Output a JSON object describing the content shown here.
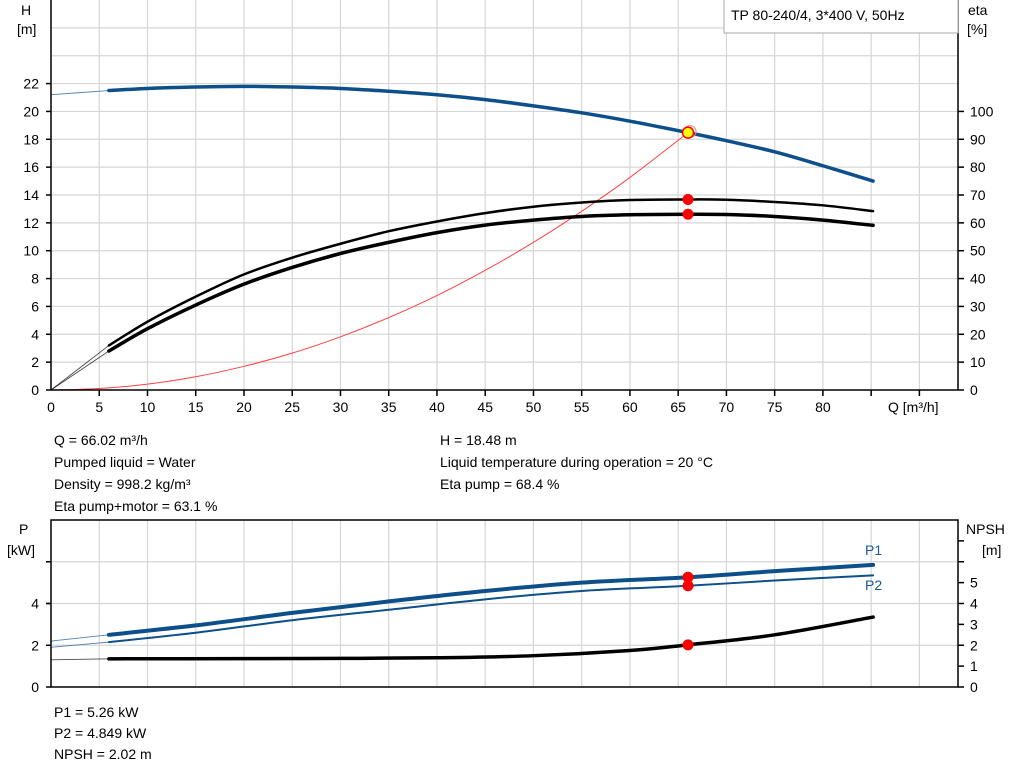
{
  "title_box": "TP 80-240/4, 3*400 V, 50Hz",
  "colors": {
    "head": "#0c4f8a",
    "power_label": "#1a5a96",
    "efficiency": "#000000",
    "system_curve": "#ff4040",
    "marker": "#ff0000",
    "duty_point": "#ffff00"
  },
  "chart_data": [
    {
      "type": "line",
      "name": "QH",
      "xlabel": "Q [m³/h]",
      "ylabel_left": [
        "H",
        "[m]"
      ],
      "ylabel_right": [
        "eta",
        "[%]"
      ],
      "xlim": [
        0,
        94
      ],
      "ylim_left": [
        0,
        28
      ],
      "ylim_right": [
        0,
        140
      ],
      "x_ticks": [
        0,
        5,
        10,
        15,
        20,
        25,
        30,
        35,
        40,
        45,
        50,
        55,
        60,
        65,
        70,
        75,
        80
      ],
      "y_ticks_left": [
        0,
        2,
        4,
        6,
        8,
        10,
        12,
        14,
        16,
        18,
        20,
        22
      ],
      "y_ticks_right": [
        0,
        10,
        20,
        30,
        40,
        50,
        60,
        70,
        80,
        90,
        100
      ],
      "grid": true,
      "series": [
        {
          "key": "H",
          "axis": "left",
          "extrapolated": {
            "x": [
              0,
              6
            ],
            "y": [
              21.2,
              21.5
            ]
          },
          "x": [
            6,
            10,
            15,
            20,
            25,
            30,
            35,
            40,
            45,
            50,
            55,
            60,
            66.02,
            70,
            75,
            80,
            85.2
          ],
          "y": [
            21.5,
            21.65,
            21.75,
            21.8,
            21.75,
            21.65,
            21.45,
            21.2,
            20.85,
            20.4,
            19.9,
            19.3,
            18.48,
            17.9,
            17.1,
            16.1,
            15.0
          ]
        },
        {
          "key": "eta_pump",
          "axis": "right",
          "extrapolated": {
            "x": [
              0,
              6
            ],
            "y": [
              0,
              16
            ]
          },
          "x": [
            6,
            10,
            15,
            20,
            25,
            30,
            35,
            40,
            45,
            50,
            55,
            60,
            66.02,
            70,
            75,
            80,
            85.2
          ],
          "y": [
            16,
            24.5,
            33.5,
            41.5,
            47.5,
            52.5,
            57,
            60.5,
            63.5,
            65.8,
            67.3,
            68.2,
            68.4,
            68.3,
            67.5,
            66.3,
            64.2
          ]
        },
        {
          "key": "eta_pump_motor",
          "axis": "right",
          "extrapolated": {
            "x": [
              0,
              6
            ],
            "y": [
              0,
              14
            ]
          },
          "x": [
            6,
            10,
            15,
            20,
            25,
            30,
            35,
            40,
            45,
            50,
            55,
            60,
            66.02,
            70,
            75,
            80,
            85.2
          ],
          "y": [
            14,
            22,
            30.5,
            38,
            44,
            49,
            53,
            56.5,
            59.2,
            61,
            62.3,
            62.9,
            63.1,
            63,
            62.3,
            61,
            59.1
          ]
        },
        {
          "key": "system_curve",
          "axis": "left",
          "x": [
            0,
            5,
            10,
            15,
            20,
            25,
            30,
            35,
            40,
            45,
            50,
            55,
            60,
            66.02
          ],
          "y": [
            0,
            0.11,
            0.42,
            0.95,
            1.7,
            2.65,
            3.82,
            5.2,
            6.78,
            8.59,
            10.6,
            12.83,
            15.26,
            18.48
          ]
        }
      ],
      "duty_point": {
        "Q": 66.02,
        "H": 18.48,
        "eta_pump": 68.4,
        "eta_pump_motor": 63.1
      }
    },
    {
      "type": "line",
      "name": "Power/NPSH",
      "ylabel_left": [
        "P",
        "[kW]"
      ],
      "ylabel_right": [
        "NPSH",
        "[m]"
      ],
      "xlim": [
        0,
        94
      ],
      "ylim_left": [
        0,
        8
      ],
      "ylim_right": [
        0,
        8
      ],
      "y_ticks_left": [
        0,
        2,
        4
      ],
      "y_ticks_right": [
        0,
        1,
        2,
        3,
        4,
        5
      ],
      "grid": true,
      "series": [
        {
          "name": "P1",
          "axis": "left",
          "extrapolated": {
            "x": [
              0,
              6
            ],
            "y": [
              2.2,
              2.5
            ]
          },
          "x": [
            6,
            15,
            25,
            35,
            45,
            55,
            66.02,
            75,
            85.2
          ],
          "y": [
            2.5,
            2.95,
            3.55,
            4.1,
            4.6,
            5.0,
            5.26,
            5.55,
            5.85
          ]
        },
        {
          "name": "P2",
          "axis": "left",
          "extrapolated": {
            "x": [
              0,
              6
            ],
            "y": [
              1.9,
              2.15
            ]
          },
          "x": [
            6,
            15,
            25,
            35,
            45,
            55,
            66.02,
            75,
            85.2
          ],
          "y": [
            2.15,
            2.6,
            3.2,
            3.7,
            4.2,
            4.6,
            4.849,
            5.1,
            5.35
          ]
        },
        {
          "key": "NPSH",
          "axis": "right",
          "extrapolated": {
            "x": [
              0,
              6
            ],
            "y": [
              1.3,
              1.35
            ]
          },
          "x": [
            6,
            20,
            30,
            40,
            50,
            60,
            66.02,
            75,
            85.2
          ],
          "y": [
            1.35,
            1.36,
            1.37,
            1.4,
            1.5,
            1.75,
            2.02,
            2.5,
            3.35
          ]
        }
      ],
      "duty_point": {
        "Q": 66.02,
        "P1": 5.26,
        "P2": 4.849,
        "NPSH": 2.02
      }
    }
  ],
  "info_top": {
    "left": [
      "Q = 66.02 m³/h",
      "Pumped liquid = Water",
      "Density = 998.2 kg/m³",
      "Eta pump+motor = 63.1 %"
    ],
    "right": [
      "H = 18.48 m",
      "Liquid temperature during operation = 20 °C",
      "Eta pump = 68.4 %"
    ]
  },
  "info_bottom": [
    "P1 = 5.26 kW",
    "P2 = 4.849 kW",
    "NPSH = 2.02 m"
  ]
}
